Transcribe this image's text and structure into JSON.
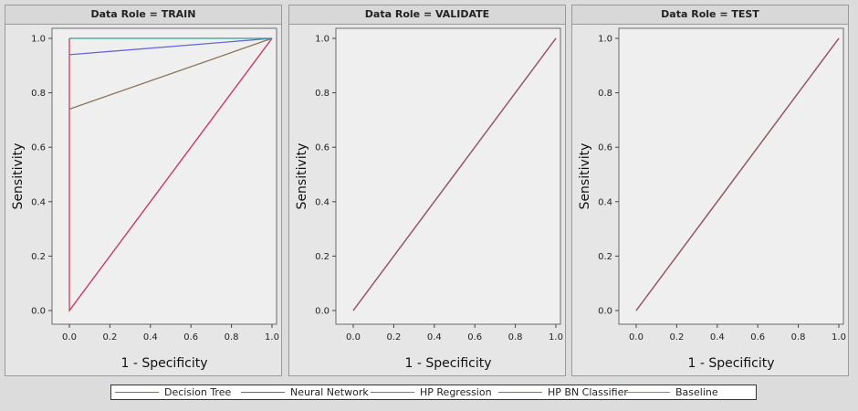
{
  "chart_data": [
    {
      "type": "line",
      "title": "Data Role = TRAIN",
      "xlabel": "1 - Specificity",
      "ylabel": "Sensitivity",
      "xlim": [
        0,
        1
      ],
      "ylim": [
        0,
        1
      ],
      "xticks": [
        "0.0",
        "0.2",
        "0.4",
        "0.6",
        "0.8",
        "1.0"
      ],
      "yticks": [
        "0.0",
        "0.2",
        "0.4",
        "0.6",
        "0.8",
        "1.0"
      ],
      "grid": false,
      "series": [
        {
          "name": "Baseline",
          "color": "#c65dc9",
          "points": [
            [
              0,
              0
            ],
            [
              1,
              1
            ]
          ]
        },
        {
          "name": "Neural Network",
          "color": "#c93e5a",
          "points": [
            [
              0,
              1
            ],
            [
              0,
              0
            ],
            [
              1,
              1
            ]
          ]
        },
        {
          "name": "HP BN Classifier",
          "color": "#8b7458",
          "points": [
            [
              0,
              0.74
            ],
            [
              1,
              1
            ]
          ]
        },
        {
          "name": "Decision Tree",
          "color": "#6868d8",
          "points": [
            [
              0,
              0.94
            ],
            [
              1,
              1
            ]
          ]
        },
        {
          "name": "HP Regression",
          "color": "#3a9a93",
          "points": [
            [
              0,
              1
            ],
            [
              1,
              1
            ]
          ]
        }
      ]
    },
    {
      "type": "line",
      "title": "Data Role = VALIDATE",
      "xlabel": "1 - Specificity",
      "ylabel": "Sensitivity",
      "xlim": [
        0,
        1
      ],
      "ylim": [
        0,
        1
      ],
      "xticks": [
        "0.0",
        "0.2",
        "0.4",
        "0.6",
        "0.8",
        "1.0"
      ],
      "yticks": [
        "0.0",
        "0.2",
        "0.4",
        "0.6",
        "0.8",
        "1.0"
      ],
      "grid": false,
      "series": [
        {
          "name": "Baseline",
          "color": "#c65dc9",
          "points": [
            [
              0,
              0
            ],
            [
              1,
              1
            ]
          ]
        },
        {
          "name": "Neural Network",
          "color": "#c93e5a",
          "points": [
            [
              0,
              0
            ],
            [
              1,
              1
            ]
          ]
        },
        {
          "name": "HP BN Classifier",
          "color": "#8b6068",
          "points": [
            [
              0,
              0
            ],
            [
              1,
              1
            ]
          ]
        }
      ]
    },
    {
      "type": "line",
      "title": "Data Role = TEST",
      "xlabel": "1 - Specificity",
      "ylabel": "Sensitivity",
      "xlim": [
        0,
        1
      ],
      "ylim": [
        0,
        1
      ],
      "xticks": [
        "0.0",
        "0.2",
        "0.4",
        "0.6",
        "0.8",
        "1.0"
      ],
      "yticks": [
        "0.0",
        "0.2",
        "0.4",
        "0.6",
        "0.8",
        "1.0"
      ],
      "grid": false,
      "series": [
        {
          "name": "Baseline",
          "color": "#c65dc9",
          "points": [
            [
              0,
              0
            ],
            [
              1,
              1
            ]
          ]
        },
        {
          "name": "Neural Network",
          "color": "#c93e5a",
          "points": [
            [
              0,
              0
            ],
            [
              1,
              1
            ]
          ]
        },
        {
          "name": "HP BN Classifier",
          "color": "#8b6068",
          "points": [
            [
              0,
              0
            ],
            [
              1,
              1
            ]
          ]
        }
      ]
    }
  ],
  "legend": {
    "placement": "bottom",
    "items": [
      {
        "name": "Decision Tree",
        "color": "#6868d8"
      },
      {
        "name": "Neural Network",
        "color": "#c93e5a"
      },
      {
        "name": "HP Regression",
        "color": "#3a9a93"
      },
      {
        "name": "HP BN Classifier",
        "color": "#8b7458"
      },
      {
        "name": "Baseline",
        "color": "#c65dc9"
      }
    ]
  }
}
